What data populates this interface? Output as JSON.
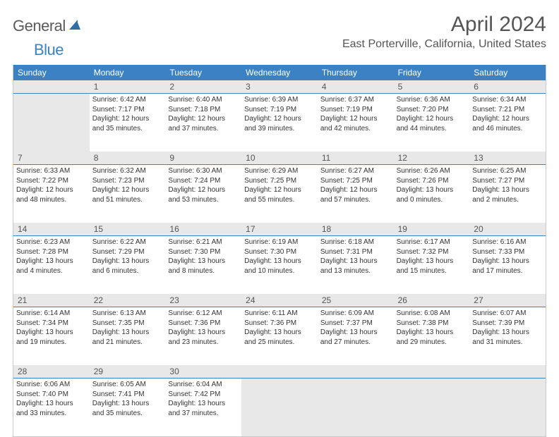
{
  "brand": {
    "part1": "General",
    "part2": "Blue"
  },
  "title": "April 2024",
  "location": "East Porterville, California, United States",
  "colors": {
    "header_bg": "#3b82c4",
    "header_text": "#ffffff",
    "daynum_bg": "#e8e8e8",
    "daynum_border": "#3b82c4",
    "text": "#333333",
    "title_text": "#555555",
    "outer_border": "#c9c9c9"
  },
  "dayNames": [
    "Sunday",
    "Monday",
    "Tuesday",
    "Wednesday",
    "Thursday",
    "Friday",
    "Saturday"
  ],
  "weeks": [
    {
      "nums": [
        "",
        "1",
        "2",
        "3",
        "4",
        "5",
        "6"
      ],
      "cells": [
        {
          "empty": true
        },
        {
          "sunrise": "Sunrise: 6:42 AM",
          "sunset": "Sunset: 7:17 PM",
          "daylight": "Daylight: 12 hours and 35 minutes."
        },
        {
          "sunrise": "Sunrise: 6:40 AM",
          "sunset": "Sunset: 7:18 PM",
          "daylight": "Daylight: 12 hours and 37 minutes."
        },
        {
          "sunrise": "Sunrise: 6:39 AM",
          "sunset": "Sunset: 7:19 PM",
          "daylight": "Daylight: 12 hours and 39 minutes."
        },
        {
          "sunrise": "Sunrise: 6:37 AM",
          "sunset": "Sunset: 7:19 PM",
          "daylight": "Daylight: 12 hours and 42 minutes."
        },
        {
          "sunrise": "Sunrise: 6:36 AM",
          "sunset": "Sunset: 7:20 PM",
          "daylight": "Daylight: 12 hours and 44 minutes."
        },
        {
          "sunrise": "Sunrise: 6:34 AM",
          "sunset": "Sunset: 7:21 PM",
          "daylight": "Daylight: 12 hours and 46 minutes."
        }
      ]
    },
    {
      "nums": [
        "7",
        "8",
        "9",
        "10",
        "11",
        "12",
        "13"
      ],
      "cells": [
        {
          "sunrise": "Sunrise: 6:33 AM",
          "sunset": "Sunset: 7:22 PM",
          "daylight": "Daylight: 12 hours and 48 minutes."
        },
        {
          "sunrise": "Sunrise: 6:32 AM",
          "sunset": "Sunset: 7:23 PM",
          "daylight": "Daylight: 12 hours and 51 minutes."
        },
        {
          "sunrise": "Sunrise: 6:30 AM",
          "sunset": "Sunset: 7:24 PM",
          "daylight": "Daylight: 12 hours and 53 minutes."
        },
        {
          "sunrise": "Sunrise: 6:29 AM",
          "sunset": "Sunset: 7:25 PM",
          "daylight": "Daylight: 12 hours and 55 minutes."
        },
        {
          "sunrise": "Sunrise: 6:27 AM",
          "sunset": "Sunset: 7:25 PM",
          "daylight": "Daylight: 12 hours and 57 minutes."
        },
        {
          "sunrise": "Sunrise: 6:26 AM",
          "sunset": "Sunset: 7:26 PM",
          "daylight": "Daylight: 13 hours and 0 minutes."
        },
        {
          "sunrise": "Sunrise: 6:25 AM",
          "sunset": "Sunset: 7:27 PM",
          "daylight": "Daylight: 13 hours and 2 minutes."
        }
      ]
    },
    {
      "nums": [
        "14",
        "15",
        "16",
        "17",
        "18",
        "19",
        "20"
      ],
      "cells": [
        {
          "sunrise": "Sunrise: 6:23 AM",
          "sunset": "Sunset: 7:28 PM",
          "daylight": "Daylight: 13 hours and 4 minutes."
        },
        {
          "sunrise": "Sunrise: 6:22 AM",
          "sunset": "Sunset: 7:29 PM",
          "daylight": "Daylight: 13 hours and 6 minutes."
        },
        {
          "sunrise": "Sunrise: 6:21 AM",
          "sunset": "Sunset: 7:30 PM",
          "daylight": "Daylight: 13 hours and 8 minutes."
        },
        {
          "sunrise": "Sunrise: 6:19 AM",
          "sunset": "Sunset: 7:30 PM",
          "daylight": "Daylight: 13 hours and 10 minutes."
        },
        {
          "sunrise": "Sunrise: 6:18 AM",
          "sunset": "Sunset: 7:31 PM",
          "daylight": "Daylight: 13 hours and 13 minutes."
        },
        {
          "sunrise": "Sunrise: 6:17 AM",
          "sunset": "Sunset: 7:32 PM",
          "daylight": "Daylight: 13 hours and 15 minutes."
        },
        {
          "sunrise": "Sunrise: 6:16 AM",
          "sunset": "Sunset: 7:33 PM",
          "daylight": "Daylight: 13 hours and 17 minutes."
        }
      ]
    },
    {
      "nums": [
        "21",
        "22",
        "23",
        "24",
        "25",
        "26",
        "27"
      ],
      "cells": [
        {
          "sunrise": "Sunrise: 6:14 AM",
          "sunset": "Sunset: 7:34 PM",
          "daylight": "Daylight: 13 hours and 19 minutes."
        },
        {
          "sunrise": "Sunrise: 6:13 AM",
          "sunset": "Sunset: 7:35 PM",
          "daylight": "Daylight: 13 hours and 21 minutes."
        },
        {
          "sunrise": "Sunrise: 6:12 AM",
          "sunset": "Sunset: 7:36 PM",
          "daylight": "Daylight: 13 hours and 23 minutes."
        },
        {
          "sunrise": "Sunrise: 6:11 AM",
          "sunset": "Sunset: 7:36 PM",
          "daylight": "Daylight: 13 hours and 25 minutes."
        },
        {
          "sunrise": "Sunrise: 6:09 AM",
          "sunset": "Sunset: 7:37 PM",
          "daylight": "Daylight: 13 hours and 27 minutes."
        },
        {
          "sunrise": "Sunrise: 6:08 AM",
          "sunset": "Sunset: 7:38 PM",
          "daylight": "Daylight: 13 hours and 29 minutes."
        },
        {
          "sunrise": "Sunrise: 6:07 AM",
          "sunset": "Sunset: 7:39 PM",
          "daylight": "Daylight: 13 hours and 31 minutes."
        }
      ]
    },
    {
      "nums": [
        "28",
        "29",
        "30",
        "",
        "",
        "",
        ""
      ],
      "cells": [
        {
          "sunrise": "Sunrise: 6:06 AM",
          "sunset": "Sunset: 7:40 PM",
          "daylight": "Daylight: 13 hours and 33 minutes."
        },
        {
          "sunrise": "Sunrise: 6:05 AM",
          "sunset": "Sunset: 7:41 PM",
          "daylight": "Daylight: 13 hours and 35 minutes."
        },
        {
          "sunrise": "Sunrise: 6:04 AM",
          "sunset": "Sunset: 7:42 PM",
          "daylight": "Daylight: 13 hours and 37 minutes."
        },
        {
          "empty": true
        },
        {
          "empty": true
        },
        {
          "empty": true
        },
        {
          "empty": true
        }
      ]
    }
  ]
}
